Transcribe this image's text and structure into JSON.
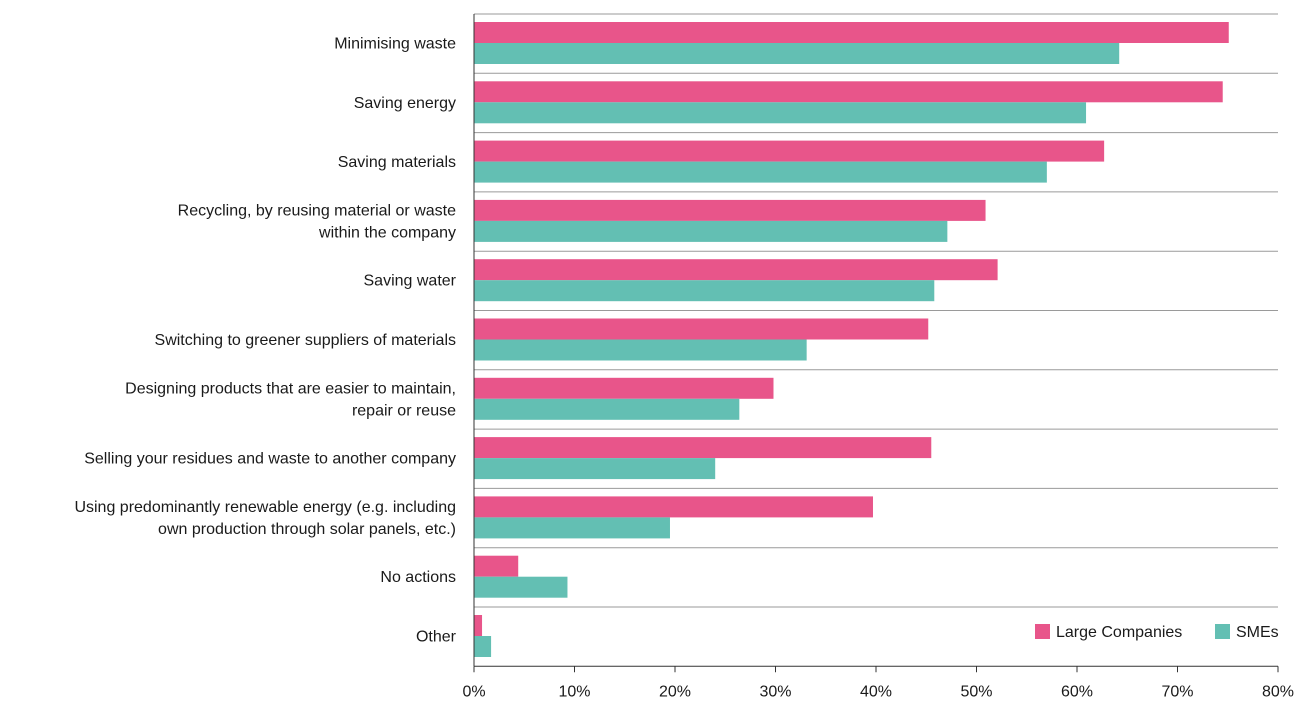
{
  "chart_data": {
    "type": "bar",
    "orientation": "horizontal",
    "categories": [
      [
        "Minimising waste"
      ],
      [
        "Saving energy"
      ],
      [
        "Saving materials"
      ],
      [
        "Recycling, by reusing material or waste",
        "within the company"
      ],
      [
        "Saving water"
      ],
      [
        "Switching to greener suppliers of materials"
      ],
      [
        "Designing products that are easier to maintain,",
        "repair or reuse"
      ],
      [
        "Selling your residues and waste to another company"
      ],
      [
        "Using predominantly renewable energy (e.g. including",
        "own production through solar panels, etc.)"
      ],
      [
        "No actions"
      ],
      [
        "Other"
      ]
    ],
    "series": [
      {
        "name": "Large Companies",
        "color": "#e8558a",
        "values": [
          75.1,
          74.5,
          62.7,
          50.9,
          52.1,
          45.2,
          29.8,
          45.5,
          39.7,
          4.4,
          0.8
        ]
      },
      {
        "name": "SMEs",
        "color": "#63bfb3",
        "values": [
          64.2,
          60.9,
          57.0,
          47.1,
          45.8,
          33.1,
          26.4,
          24.0,
          19.5,
          9.3,
          1.7
        ]
      }
    ],
    "xlim": [
      0,
      80
    ],
    "xticks": [
      "0%",
      "10%",
      "20%",
      "30%",
      "40%",
      "50%",
      "60%",
      "70%",
      "80%"
    ],
    "legend_position": "bottom-right",
    "grid": false
  }
}
